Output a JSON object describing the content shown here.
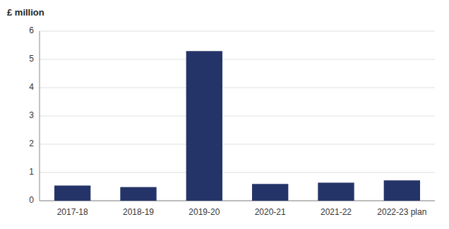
{
  "chart_data": {
    "type": "bar",
    "ylabel": "£ million",
    "categories": [
      "2017-18",
      "2018-19",
      "2019-20",
      "2020-21",
      "2021-22",
      "2022-23 plan"
    ],
    "values": [
      0.537,
      0.483,
      5.293,
      0.593,
      0.639,
      0.72
    ],
    "color": "#253468",
    "ylim": [
      0,
      6
    ],
    "yticks": [
      0,
      1,
      2,
      3,
      4,
      5,
      6
    ],
    "grid": true
  }
}
